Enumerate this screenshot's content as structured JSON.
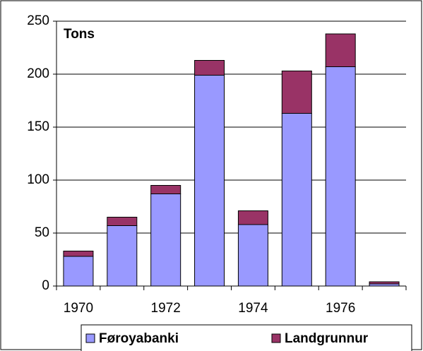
{
  "chart_data": {
    "type": "stacked_bar",
    "annotation": "Tons",
    "categories": [
      "1970",
      null,
      "1972",
      null,
      "1974",
      null,
      "1976",
      null
    ],
    "series": [
      {
        "name": "Føroyabanki",
        "color": "#9999ff",
        "values": [
          28,
          57,
          87,
          199,
          58,
          163,
          207,
          2
        ]
      },
      {
        "name": "Landgrunnur",
        "color": "#993366",
        "values": [
          5,
          8,
          8,
          14,
          13,
          40,
          31,
          2
        ]
      }
    ],
    "ylim": [
      0,
      250
    ],
    "yticks": [
      0,
      50,
      100,
      150,
      200,
      250
    ],
    "grid": true,
    "legend": "bottom"
  }
}
